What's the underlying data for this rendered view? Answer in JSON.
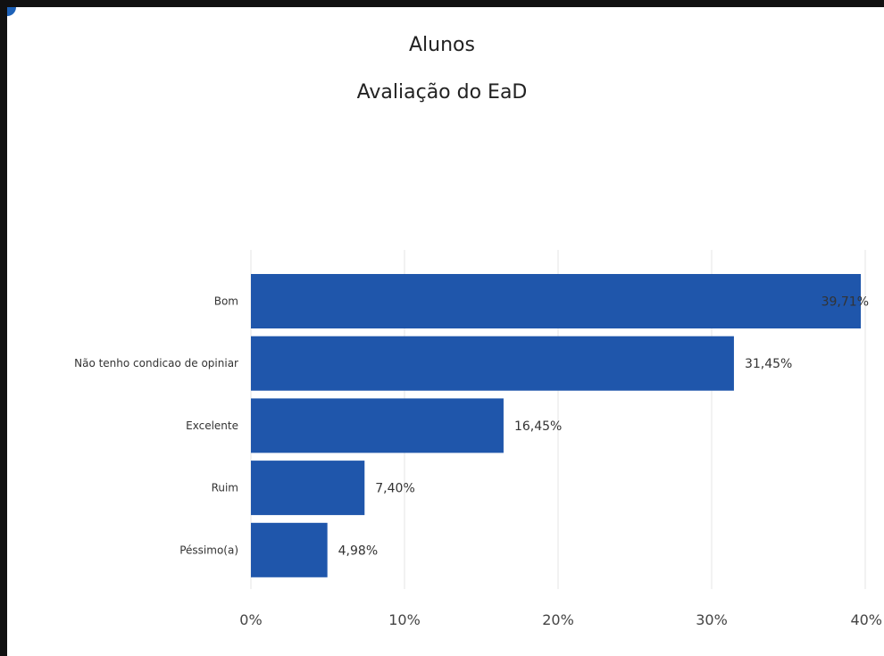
{
  "chart_data": {
    "type": "bar",
    "orientation": "horizontal",
    "title": "Alunos",
    "subtitle": "Avaliação do EaD",
    "categories": [
      "Bom",
      "Não tenho condicao de opiniar",
      "Excelente",
      "Ruim",
      "Péssimo(a)"
    ],
    "values": [
      39.71,
      31.45,
      16.45,
      7.4,
      4.98
    ],
    "value_labels": [
      "39,71%",
      "31,45%",
      "16,45%",
      "7,40%",
      "4,98%"
    ],
    "xlim": [
      0,
      40
    ],
    "xticks": [
      0,
      10,
      20,
      30,
      40
    ],
    "xtick_labels": [
      "0%",
      "10%",
      "20%",
      "30%",
      "40%"
    ],
    "bar_color": "#1f56ab",
    "grid": true,
    "xlabel": "",
    "ylabel": ""
  }
}
